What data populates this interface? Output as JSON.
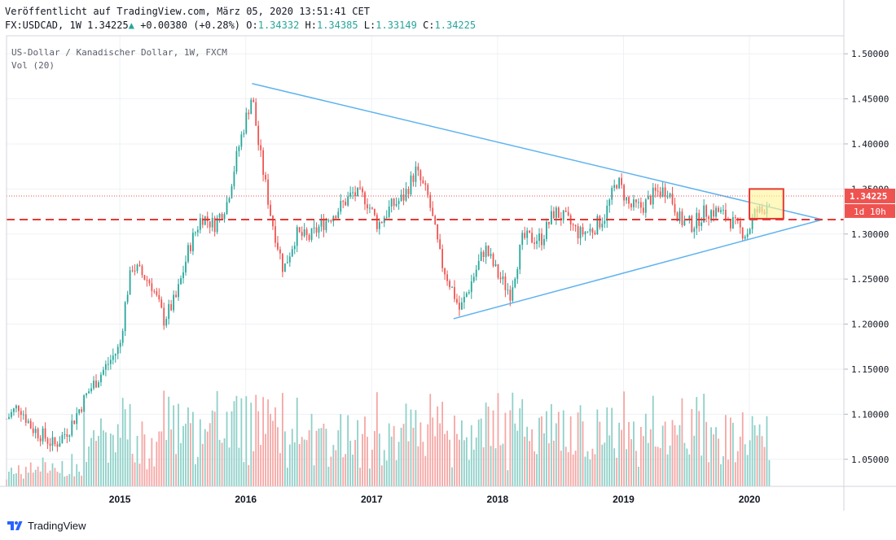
{
  "header": {
    "published": "Veröffentlicht auf TradingView.com, März 05, 2020 13:51:41 CET",
    "symbol": "FX:USDCAD, 1W",
    "last": "1.34225",
    "change": "+0.00380 (+0.28%)",
    "open_label": "O:",
    "open": "1.34332",
    "high_label": "H:",
    "high": "1.34385",
    "low_label": "L:",
    "low": "1.33149",
    "close_label": "C:",
    "close": "1.34225"
  },
  "footer": {
    "brand": "TradingView"
  },
  "colors": {
    "up": "#26a69a",
    "down": "#ef5350",
    "up_vol": "#8ed0c8",
    "down_vol": "#f5a6a4",
    "trendline": "#5eb3f0",
    "support": "#e53935",
    "highlight_fill": "#fff59d",
    "highlight_border": "#e53935",
    "grid": "#eef1f5",
    "axis_text": "#131722"
  },
  "chart_data": {
    "type": "candlestick",
    "title": "US-Dollar / Kanadischer Dollar, 1W, FXCM",
    "indicator": "Vol (20)",
    "ylim": [
      1.02,
      1.52
    ],
    "y_ticks": [
      "1.05000",
      "1.10000",
      "1.15000",
      "1.20000",
      "1.25000",
      "1.30000",
      "1.35000",
      "1.40000",
      "1.45000",
      "1.50000"
    ],
    "xlim": [
      2014.1,
      2020.75
    ],
    "x_ticks": [
      "2015",
      "2016",
      "2017",
      "2018",
      "2019",
      "2020"
    ],
    "price_anchors": [
      [
        2014.1,
        1.095
      ],
      [
        2014.2,
        1.11
      ],
      [
        2014.3,
        1.085
      ],
      [
        2014.4,
        1.075
      ],
      [
        2014.48,
        1.065
      ],
      [
        2014.6,
        1.085
      ],
      [
        2014.75,
        1.125
      ],
      [
        2014.9,
        1.155
      ],
      [
        2015.0,
        1.175
      ],
      [
        2015.05,
        1.23
      ],
      [
        2015.1,
        1.265
      ],
      [
        2015.25,
        1.245
      ],
      [
        2015.35,
        1.205
      ],
      [
        2015.45,
        1.23
      ],
      [
        2015.55,
        1.285
      ],
      [
        2015.65,
        1.32
      ],
      [
        2015.75,
        1.31
      ],
      [
        2015.85,
        1.335
      ],
      [
        2015.95,
        1.4
      ],
      [
        2016.05,
        1.455
      ],
      [
        2016.1,
        1.4
      ],
      [
        2016.2,
        1.32
      ],
      [
        2016.3,
        1.26
      ],
      [
        2016.4,
        1.3
      ],
      [
        2016.5,
        1.295
      ],
      [
        2016.6,
        1.31
      ],
      [
        2016.75,
        1.33
      ],
      [
        2016.85,
        1.345
      ],
      [
        2016.95,
        1.34
      ],
      [
        2017.05,
        1.31
      ],
      [
        2017.15,
        1.33
      ],
      [
        2017.25,
        1.34
      ],
      [
        2017.35,
        1.37
      ],
      [
        2017.45,
        1.34
      ],
      [
        2017.55,
        1.27
      ],
      [
        2017.65,
        1.235
      ],
      [
        2017.7,
        1.215
      ],
      [
        2017.8,
        1.25
      ],
      [
        2017.9,
        1.285
      ],
      [
        2018.0,
        1.255
      ],
      [
        2018.1,
        1.235
      ],
      [
        2018.2,
        1.295
      ],
      [
        2018.35,
        1.295
      ],
      [
        2018.45,
        1.325
      ],
      [
        2018.55,
        1.315
      ],
      [
        2018.65,
        1.3
      ],
      [
        2018.75,
        1.305
      ],
      [
        2018.85,
        1.32
      ],
      [
        2018.95,
        1.36
      ],
      [
        2019.05,
        1.33
      ],
      [
        2019.15,
        1.33
      ],
      [
        2019.25,
        1.345
      ],
      [
        2019.35,
        1.35
      ],
      [
        2019.45,
        1.315
      ],
      [
        2019.55,
        1.31
      ],
      [
        2019.65,
        1.325
      ],
      [
        2019.75,
        1.325
      ],
      [
        2019.85,
        1.315
      ],
      [
        2019.92,
        1.305
      ],
      [
        2019.98,
        1.3
      ],
      [
        2020.05,
        1.325
      ],
      [
        2020.1,
        1.325
      ],
      [
        2020.17,
        1.342
      ]
    ],
    "volume_ylim": [
      0,
      1500
    ],
    "triangle": {
      "start": [
        2016.05,
        1.467
      ],
      "apex": [
        2020.58,
        1.316
      ],
      "low": [
        2017.65,
        1.206
      ]
    },
    "support_level": 1.316,
    "last_price": "1.34225",
    "countdown": "1d 10h",
    "highlight_range": {
      "x": [
        2020.0,
        2020.27
      ],
      "y": [
        1.317,
        1.35
      ]
    }
  }
}
